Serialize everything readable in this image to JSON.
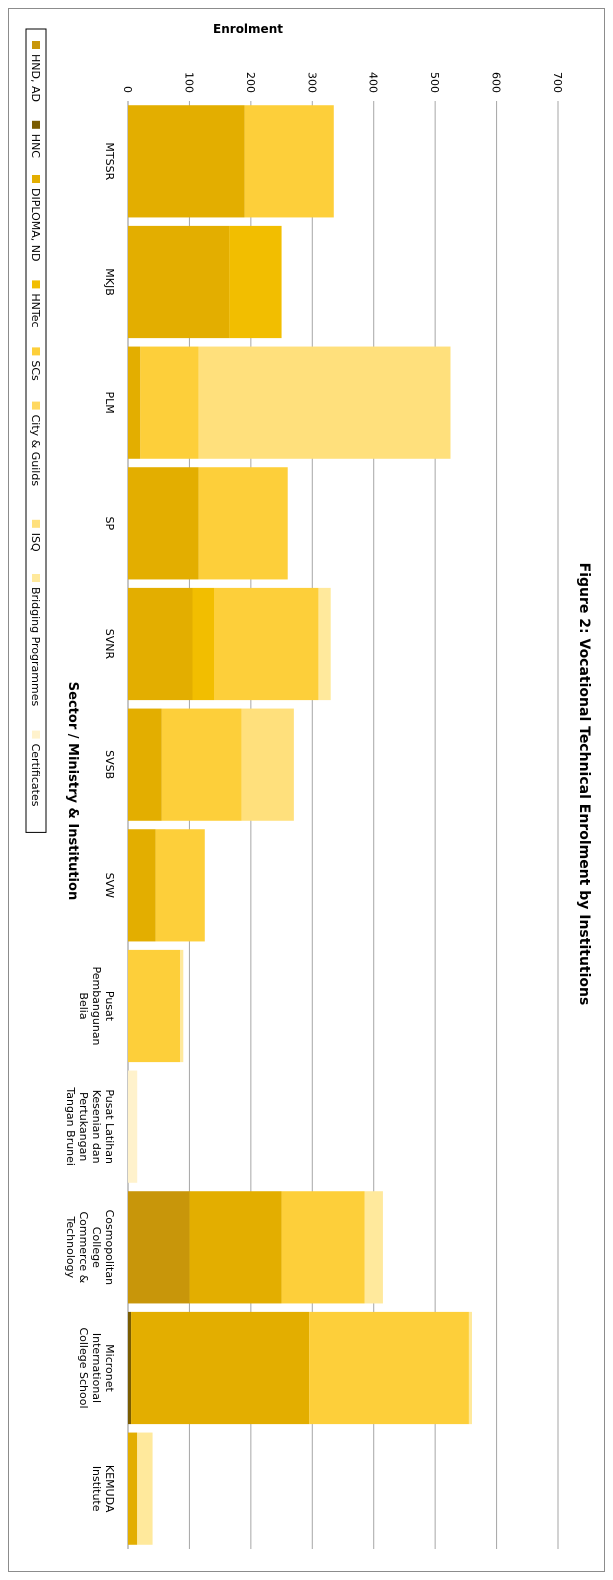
{
  "chart_data": {
    "type": "bar",
    "stacked": true,
    "orientation": "rotated-90-clockwise",
    "title": "Figure 2:  Vocational  Technical Enrolment by Institutions",
    "xlabel": "Sector / Ministry & Institution",
    "ylabel": "Enrolment",
    "ylim": [
      0,
      700
    ],
    "yticks": [
      0,
      100,
      200,
      300,
      400,
      500,
      600,
      700
    ],
    "grid": true,
    "legend_position": "bottom",
    "categories": [
      [
        "MTSSR"
      ],
      [
        "MKJB"
      ],
      [
        "PLM"
      ],
      [
        "SP"
      ],
      [
        "SVNR"
      ],
      [
        "SVSB"
      ],
      [
        "SVW"
      ],
      [
        "Pusat",
        "Pembangunan",
        "Belia"
      ],
      [
        "Pusat Latihan",
        "Kesenian dan",
        "Pertukangan",
        "Tangan Brunei"
      ],
      [
        "Cosmopolitan",
        "College",
        "Commerce &",
        "Technology"
      ],
      [
        "Micronet",
        "International",
        "College School"
      ],
      [
        "KEMUDA",
        "Institute"
      ]
    ],
    "series": [
      {
        "name": "HND, AD",
        "color": "#C8960A",
        "values": [
          0,
          0,
          0,
          0,
          0,
          0,
          0,
          0,
          0,
          100,
          0,
          0
        ]
      },
      {
        "name": "HNC",
        "color": "#7A5C00",
        "values": [
          0,
          0,
          0,
          0,
          0,
          0,
          0,
          0,
          0,
          0,
          5,
          0
        ]
      },
      {
        "name": "DIPLOMA, ND",
        "color": "#E3AE00",
        "values": [
          190,
          165,
          20,
          115,
          105,
          55,
          45,
          0,
          0,
          150,
          290,
          15
        ]
      },
      {
        "name": "HNTec",
        "color": "#F2BE00",
        "values": [
          0,
          85,
          0,
          0,
          35,
          0,
          0,
          0,
          0,
          0,
          0,
          0
        ]
      },
      {
        "name": "SCs",
        "color": "#FDCF3A",
        "values": [
          145,
          0,
          95,
          145,
          170,
          130,
          80,
          85,
          0,
          135,
          260,
          0
        ]
      },
      {
        "name": "City & Guilds",
        "color": "#FFD860",
        "values": [
          0,
          0,
          0,
          0,
          0,
          0,
          0,
          0,
          0,
          0,
          0,
          0
        ]
      },
      {
        "name": "ISQ",
        "color": "#FFE07C",
        "values": [
          0,
          0,
          410,
          0,
          0,
          85,
          0,
          0,
          0,
          0,
          0,
          0
        ]
      },
      {
        "name": "Bridging Programmes",
        "color": "#FFE99C",
        "values": [
          0,
          0,
          0,
          0,
          20,
          0,
          0,
          5,
          0,
          30,
          5,
          25
        ]
      },
      {
        "name": "Certificates",
        "color": "#FFF2CC",
        "values": [
          0,
          0,
          0,
          0,
          0,
          0,
          0,
          0,
          15,
          0,
          0,
          0
        ]
      }
    ]
  }
}
